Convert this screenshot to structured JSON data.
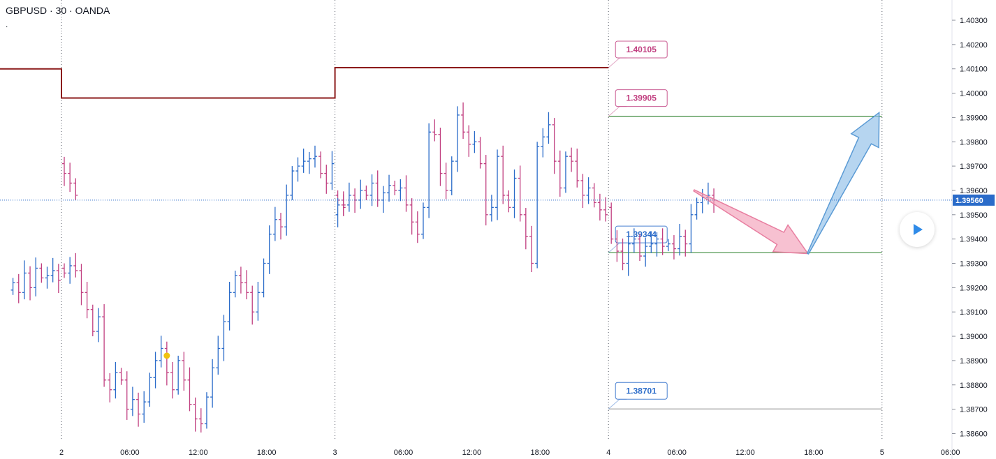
{
  "header": {
    "symbol_line": "GBPUSD · 30 · OANDA",
    "sub_line": "."
  },
  "colors": {
    "up": "#2a6bc9",
    "down": "#c13f80",
    "support": "#3d8b3d",
    "resistance": "#8b1a1a",
    "crosshair": "#2a6bc9",
    "price_badge": "#2a6bc9",
    "arrow_down": "#f2a0b8",
    "arrow_up": "#8fbfe8"
  },
  "icons": {
    "play": "play-icon"
  },
  "chart_data": {
    "type": "ohlc",
    "title": "GBPUSD · 30 · OANDA",
    "symbol": "GBPUSD",
    "interval": "30",
    "broker": "OANDA",
    "current_price": "1.39560",
    "ylim": [
      1.3855,
      1.4045
    ],
    "y_ticks": [
      "1.40300",
      "1.40200",
      "1.40100",
      "1.40000",
      "1.39900",
      "1.39800",
      "1.39700",
      "1.39600",
      "1.39500",
      "1.39400",
      "1.39300",
      "1.39200",
      "1.39100",
      "1.39000",
      "1.38900",
      "1.38800",
      "1.38700",
      "1.38600"
    ],
    "x_ticks": [
      {
        "label": "2",
        "day": 2,
        "time": "00:00"
      },
      {
        "label": "06:00",
        "day": 2,
        "time": "06:00"
      },
      {
        "label": "12:00",
        "day": 2,
        "time": "12:00"
      },
      {
        "label": "18:00",
        "day": 2,
        "time": "18:00"
      },
      {
        "label": "3",
        "day": 3,
        "time": "00:00"
      },
      {
        "label": "06:00",
        "day": 3,
        "time": "06:00"
      },
      {
        "label": "12:00",
        "day": 3,
        "time": "12:00"
      },
      {
        "label": "18:00",
        "day": 3,
        "time": "18:00"
      },
      {
        "label": "4",
        "day": 4,
        "time": "00:00"
      },
      {
        "label": "06:00",
        "day": 4,
        "time": "06:00"
      },
      {
        "label": "12:00",
        "day": 4,
        "time": "12:00"
      },
      {
        "label": "18:00",
        "day": 4,
        "time": "18:00"
      },
      {
        "label": "5",
        "day": 5,
        "time": "00:00"
      },
      {
        "label": "06:00",
        "day": 5,
        "time": "06:00"
      }
    ],
    "day_separators": [
      {
        "day": 2,
        "time": "00:00"
      },
      {
        "day": 3,
        "time": "00:00"
      },
      {
        "day": 4,
        "time": "00:00"
      },
      {
        "day": 5,
        "time": "00:00"
      }
    ],
    "resistance_steps": [
      {
        "from": {
          "day": 1,
          "time": "18:00"
        },
        "to": {
          "day": 2,
          "time": "00:00"
        },
        "price": 1.401
      },
      {
        "from": {
          "day": 2,
          "time": "00:00"
        },
        "to": {
          "day": 3,
          "time": "00:00"
        },
        "price": 1.3998
      },
      {
        "from": {
          "day": 3,
          "time": "00:00"
        },
        "to": {
          "day": 4,
          "time": "00:00"
        },
        "price": 1.40105
      }
    ],
    "levels": [
      {
        "label": "1.40105",
        "price": 1.40105,
        "color": "#c13f80",
        "line": false
      },
      {
        "label": "1.39905",
        "price": 1.39905,
        "color": "#c13f80",
        "line": true,
        "line_color": "#3d8b3d"
      },
      {
        "label": "1.39344",
        "price": 1.39344,
        "color": "#2a6bc9",
        "line": true,
        "line_color": "#3d8b3d"
      },
      {
        "label": "1.38701",
        "price": 1.38701,
        "color": "#2a6bc9",
        "line": true,
        "line_color": "#a0a0a0"
      }
    ],
    "level_line_end": {
      "day": 5,
      "time": "00:00"
    },
    "arrows": [
      {
        "name": "down-arrow",
        "from": {
          "day": 4,
          "time": "07:30",
          "price": 1.396
        },
        "to": {
          "day": 4,
          "time": "17:30",
          "price": 1.3934
        },
        "color": "#f2a0b8"
      },
      {
        "name": "up-arrow",
        "from": {
          "day": 4,
          "time": "17:30",
          "price": 1.3934
        },
        "to": {
          "day": 4,
          "time": "23:45",
          "price": 1.3992
        },
        "color": "#8fbfe8"
      }
    ],
    "marker": {
      "day": 2,
      "time": "09:00",
      "price": 1.3892,
      "color": "#f0c20f"
    },
    "bars_day1": {
      "start": "19:30",
      "closes": [
        1.3922,
        1.3918,
        1.3926,
        1.392,
        1.3928,
        1.3924,
        1.3925,
        1.3927,
        1.3923,
        1.3928
      ]
    },
    "bars_day2": {
      "start": "00:00",
      "closes": [
        1.3926,
        1.3929,
        1.3927,
        1.3918,
        1.3911,
        1.3902,
        1.3908,
        1.3882,
        1.3878,
        1.3885,
        1.3882,
        1.387,
        1.3874,
        1.3868,
        1.3873,
        1.3883,
        1.389,
        1.3895,
        1.3885,
        1.3878,
        1.389,
        1.3882,
        1.3872,
        1.3866,
        1.3864,
        1.3875,
        1.3887,
        1.3895,
        1.3906,
        1.3918,
        1.3925,
        1.3922,
        1.3918,
        1.391,
        1.3918,
        1.393,
        1.3942,
        1.3948,
        1.3945,
        1.3958,
        1.3968,
        1.397,
        1.3972,
        1.3973,
        1.3974,
        1.3967,
        1.3963,
        1.3971,
        1.3967,
        1.3963,
        1.3958
      ]
    },
    "bars_day3": {
      "start": "00:00",
      "closes": [
        1.3956,
        1.3954,
        1.3958,
        1.3956,
        1.396,
        1.3958,
        1.3963,
        1.3956,
        1.3959,
        1.3962,
        1.396,
        1.3961,
        1.3954,
        1.3947,
        1.3942,
        1.3953,
        1.3984,
        1.3983,
        1.3967,
        1.396,
        1.3972,
        1.3991,
        1.3984,
        1.3979,
        1.398,
        1.3971,
        1.395,
        1.3953,
        1.3974,
        1.3958,
        1.3953,
        1.3965,
        1.395,
        1.3941,
        1.393,
        1.3978,
        1.3982,
        1.3987,
        1.3972,
        1.3961,
        1.3974,
        1.3972,
        1.3964,
        1.3958,
        1.3961,
        1.3955,
        1.3952,
        1.395,
        1.3954,
        1.3953
      ]
    },
    "bars_day4": {
      "start": "00:00",
      "closes": [
        1.394,
        1.3935,
        1.393,
        1.3938,
        1.394,
        1.3933,
        1.3937,
        1.3938,
        1.394,
        1.3937,
        1.3938,
        1.3936,
        1.3941,
        1.3938,
        1.395,
        1.3955,
        1.3957,
        1.3958,
        1.3956
      ]
    }
  }
}
